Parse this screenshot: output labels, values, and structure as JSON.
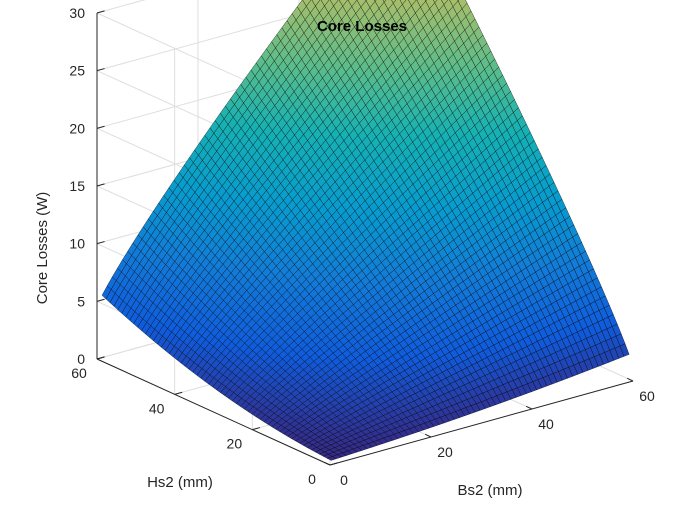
{
  "chart_data": {
    "type": "surface",
    "title": "Core Losses",
    "xlabel": "Bs2 (mm)",
    "ylabel": "Hs2 (mm)",
    "zlabel": "Core Losses (W)",
    "xlim": [
      0,
      60
    ],
    "ylim": [
      0,
      60
    ],
    "zlim": [
      0,
      30
    ],
    "x_ticks": [
      0,
      20,
      40,
      60
    ],
    "y_ticks": [
      0,
      20,
      40,
      60
    ],
    "z_ticks": [
      0,
      5,
      10,
      15,
      20,
      25,
      30
    ],
    "grid": true,
    "colormap": "parula",
    "edge_color": "#000000",
    "surface_domain": {
      "x": [
        1,
        60
      ],
      "y": [
        1,
        60
      ]
    },
    "sample_points": [
      {
        "x": 1,
        "y": 60,
        "z": 4.5
      },
      {
        "x": 60,
        "y": 60,
        "z": 35
      },
      {
        "x": 60,
        "y": 1,
        "z": 1.2
      },
      {
        "x": 1,
        "y": 1,
        "z": 0.1
      },
      {
        "x": 30,
        "y": 60,
        "z": 13
      },
      {
        "x": 60,
        "y": 30,
        "z": 7
      }
    ]
  }
}
